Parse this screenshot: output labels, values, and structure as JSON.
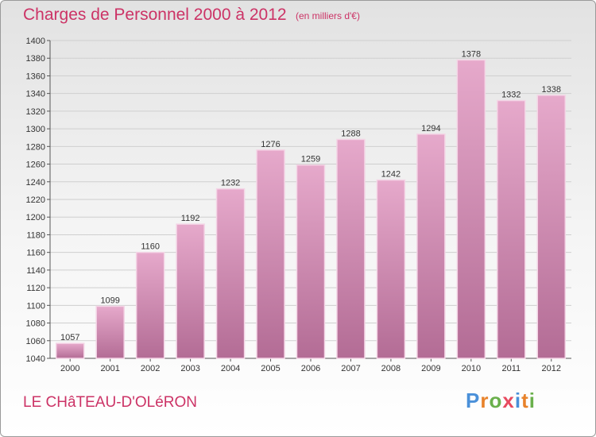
{
  "header": {
    "title": "Charges de Personnel 2000 à 2012",
    "subtitle": "(en milliers d'€)"
  },
  "footer": {
    "place": "LE CHâTEAU-D'OLéRON",
    "logo": {
      "letters": [
        "P",
        "r",
        "o",
        "x",
        "i",
        "t",
        "i"
      ],
      "colors": [
        "#4a90d9",
        "#e8822a",
        "#6ab04c",
        "#e84a5f",
        "#4a90d9",
        "#e8822a",
        "#6ab04c"
      ]
    }
  },
  "chart_data": {
    "type": "bar",
    "title": "Charges de Personnel 2000 à 2012",
    "subtitle": "(en milliers d'€)",
    "categories": [
      "2000",
      "2001",
      "2002",
      "2003",
      "2004",
      "2005",
      "2006",
      "2007",
      "2008",
      "2009",
      "2010",
      "2011",
      "2012"
    ],
    "values": [
      1057,
      1099,
      1160,
      1192,
      1232,
      1276,
      1259,
      1288,
      1242,
      1294,
      1378,
      1332,
      1338
    ],
    "ylim": [
      1040,
      1400
    ],
    "yticks": [
      1040,
      1060,
      1080,
      1100,
      1120,
      1140,
      1160,
      1180,
      1200,
      1220,
      1240,
      1260,
      1280,
      1300,
      1320,
      1340,
      1360,
      1380,
      1400
    ],
    "grid": true,
    "bar_color": "#d98fb8",
    "xlabel": "",
    "ylabel": ""
  }
}
